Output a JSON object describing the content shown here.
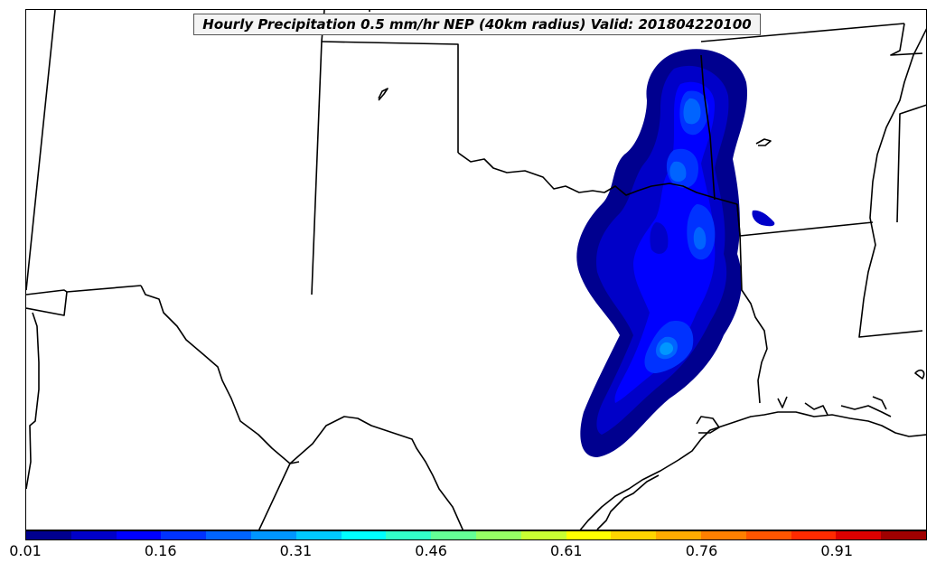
{
  "title": "Hourly Precipitation 0.5 mm/hr NEP (40km radius) Valid: 201804220100",
  "colorbar": {
    "tick_labels": [
      "0.01",
      "0.16",
      "0.31",
      "0.46",
      "0.61",
      "0.76",
      "0.91"
    ],
    "colors": [
      "#00008f",
      "#0000c8",
      "#0000ff",
      "#0032ff",
      "#0064ff",
      "#0096ff",
      "#00c8ff",
      "#00ffff",
      "#32ffc8",
      "#64ff96",
      "#96ff64",
      "#c8ff32",
      "#ffff00",
      "#ffd400",
      "#ffaa00",
      "#ff7f00",
      "#ff5500",
      "#ff2a00",
      "#dd0000",
      "#a00000"
    ]
  },
  "map": {
    "region": "South-central United States",
    "features": [
      "state-borders",
      "coastline",
      "precipitation-contours"
    ]
  }
}
